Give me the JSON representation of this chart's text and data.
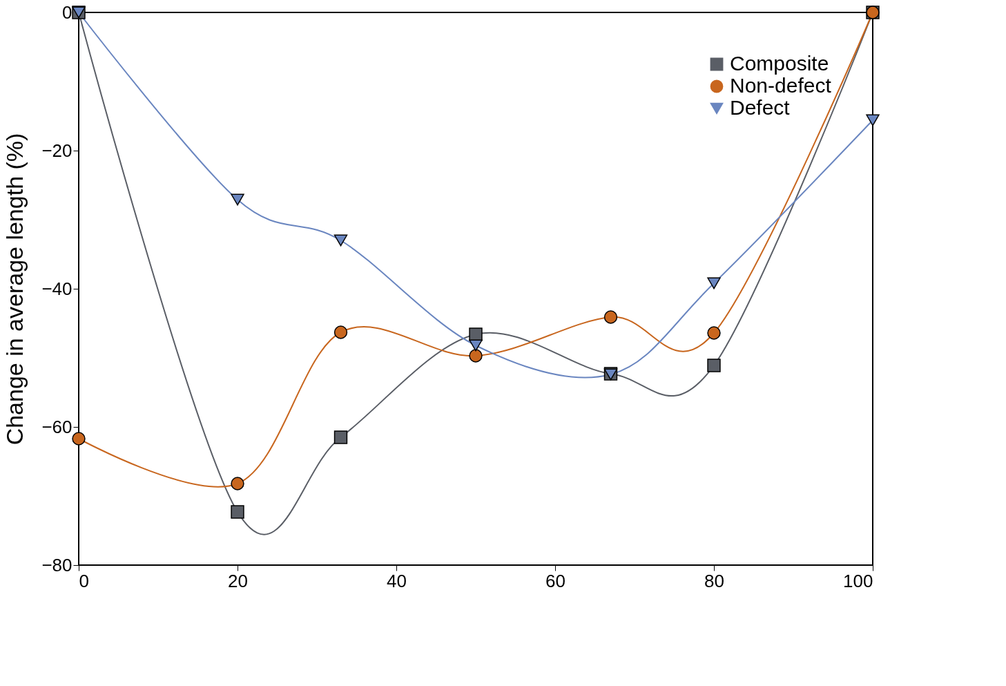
{
  "chart_data": {
    "type": "line",
    "ylabel": "Change in average length (%)",
    "x": [
      0,
      20,
      33,
      50,
      67,
      80,
      100
    ],
    "series": [
      {
        "name": "Composite",
        "color": "#5a5e66",
        "marker": "square",
        "values": [
          0,
          -72.3,
          -61.5,
          -46.6,
          -52.3,
          -51.1,
          0
        ]
      },
      {
        "name": "Non-defect",
        "color": "#c8661e",
        "marker": "circle",
        "values": [
          -61.7,
          -68.2,
          -46.3,
          -49.7,
          -44.1,
          -46.4,
          0
        ]
      },
      {
        "name": "Defect",
        "color": "#6a86c0",
        "marker": "triangle-down",
        "values": [
          0,
          -27.1,
          -33.0,
          -48.2,
          -52.4,
          -39.2,
          -15.6
        ]
      }
    ],
    "xlim": [
      0,
      100
    ],
    "ylim": [
      -80,
      0
    ],
    "xticks": [
      0,
      20,
      40,
      60,
      80,
      100
    ],
    "yticks": [
      -80,
      -60,
      -40,
      -20,
      0
    ],
    "grid": false,
    "legend": "top right",
    "line_style": "solid"
  }
}
